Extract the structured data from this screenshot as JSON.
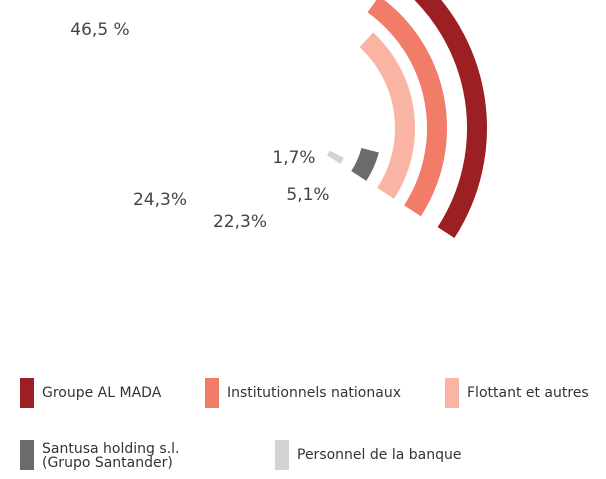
{
  "chart_data": {
    "type": "radial-bar",
    "series": [
      {
        "name": "Groupe AL MADA",
        "color": "#9c1f24",
        "value": 46.5,
        "value_label": "46,5 %"
      },
      {
        "name": "Institutionnels nationaux",
        "color": "#f17c67",
        "value": 24.3,
        "value_label": "24,3%"
      },
      {
        "name": "Flottant et autres",
        "color": "#f9b4a3",
        "value": 22.3,
        "value_label": "22,3%"
      },
      {
        "name": "Santusa holding s.l.\n(Grupo Santander)",
        "color": "#6b6b6b",
        "value": 5.1,
        "value_label": "5,1%"
      },
      {
        "name": "Personnel de la banque",
        "color": "#d3d3d3",
        "value": 1.7,
        "value_label": "1,7%"
      }
    ]
  }
}
